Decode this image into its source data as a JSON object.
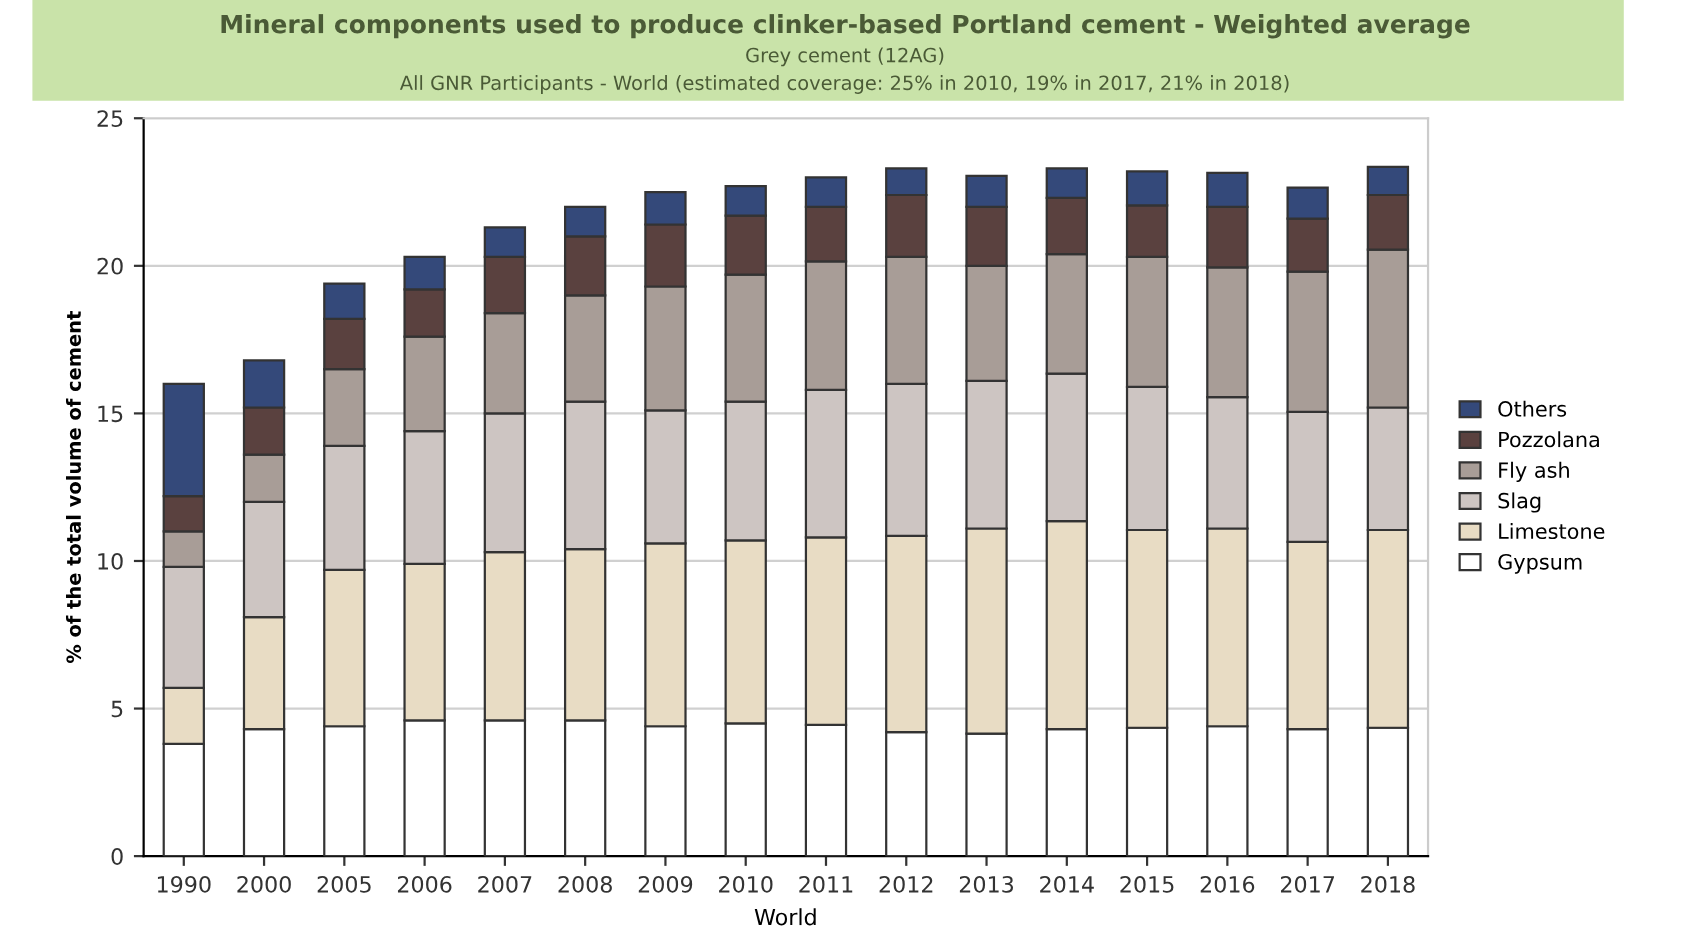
{
  "chart_data": {
    "type": "bar",
    "stacked": true,
    "title": "Mineral components used to produce clinker-based Portland cement - Weighted average",
    "subtitle": "Grey cement (12AG)\nAll GNR Participants - World (estimated coverage: 25% in 2010, 19% in 2017, 21% in 2018)",
    "xlabel": "World",
    "ylabel": "% of the total volume of cement",
    "categories": [
      "1990",
      "2000",
      "2005",
      "2006",
      "2007",
      "2008",
      "2009",
      "2010",
      "2011",
      "2012",
      "2013",
      "2014",
      "2015",
      "2016",
      "2017",
      "2018"
    ],
    "series": [
      {
        "name": "Gypsum",
        "color": "#ffffff",
        "values": [
          3.8,
          4.3,
          4.4,
          4.6,
          4.6,
          4.6,
          4.4,
          4.5,
          4.45,
          4.2,
          4.15,
          4.3,
          4.35,
          4.4,
          4.3,
          4.35
        ]
      },
      {
        "name": "Limestone",
        "color": "#e8dcc4",
        "values": [
          1.9,
          3.8,
          5.3,
          5.3,
          5.7,
          5.8,
          6.2,
          6.2,
          6.35,
          6.65,
          6.95,
          7.05,
          6.7,
          6.7,
          6.35,
          6.7
        ]
      },
      {
        "name": "Slag",
        "color": "#cdc5c2",
        "values": [
          4.1,
          3.9,
          4.2,
          4.5,
          4.7,
          5.0,
          4.5,
          4.7,
          5.0,
          5.15,
          5.0,
          5.0,
          4.85,
          4.45,
          4.4,
          4.15
        ]
      },
      {
        "name": "Fly ash",
        "color": "#a89d97",
        "values": [
          1.2,
          1.6,
          2.6,
          3.2,
          3.4,
          3.6,
          4.2,
          4.3,
          4.35,
          4.3,
          3.9,
          4.05,
          4.4,
          4.4,
          4.75,
          5.35
        ]
      },
      {
        "name": "Pozzolana",
        "color": "#5a413f",
        "values": [
          1.2,
          1.6,
          1.7,
          1.6,
          1.9,
          2.0,
          2.1,
          2.0,
          1.85,
          2.1,
          2.0,
          1.9,
          1.75,
          2.05,
          1.8,
          1.85
        ]
      },
      {
        "name": "Others",
        "color": "#34497a",
        "values": [
          3.8,
          1.6,
          1.2,
          1.1,
          1.0,
          1.0,
          1.1,
          1.0,
          1.0,
          0.9,
          1.05,
          1.0,
          1.15,
          1.15,
          1.05,
          0.95
        ]
      }
    ],
    "ylim": [
      0,
      25
    ],
    "yticks": [
      0,
      5,
      10,
      15,
      20,
      25
    ],
    "grid": "y",
    "legend": "right"
  }
}
